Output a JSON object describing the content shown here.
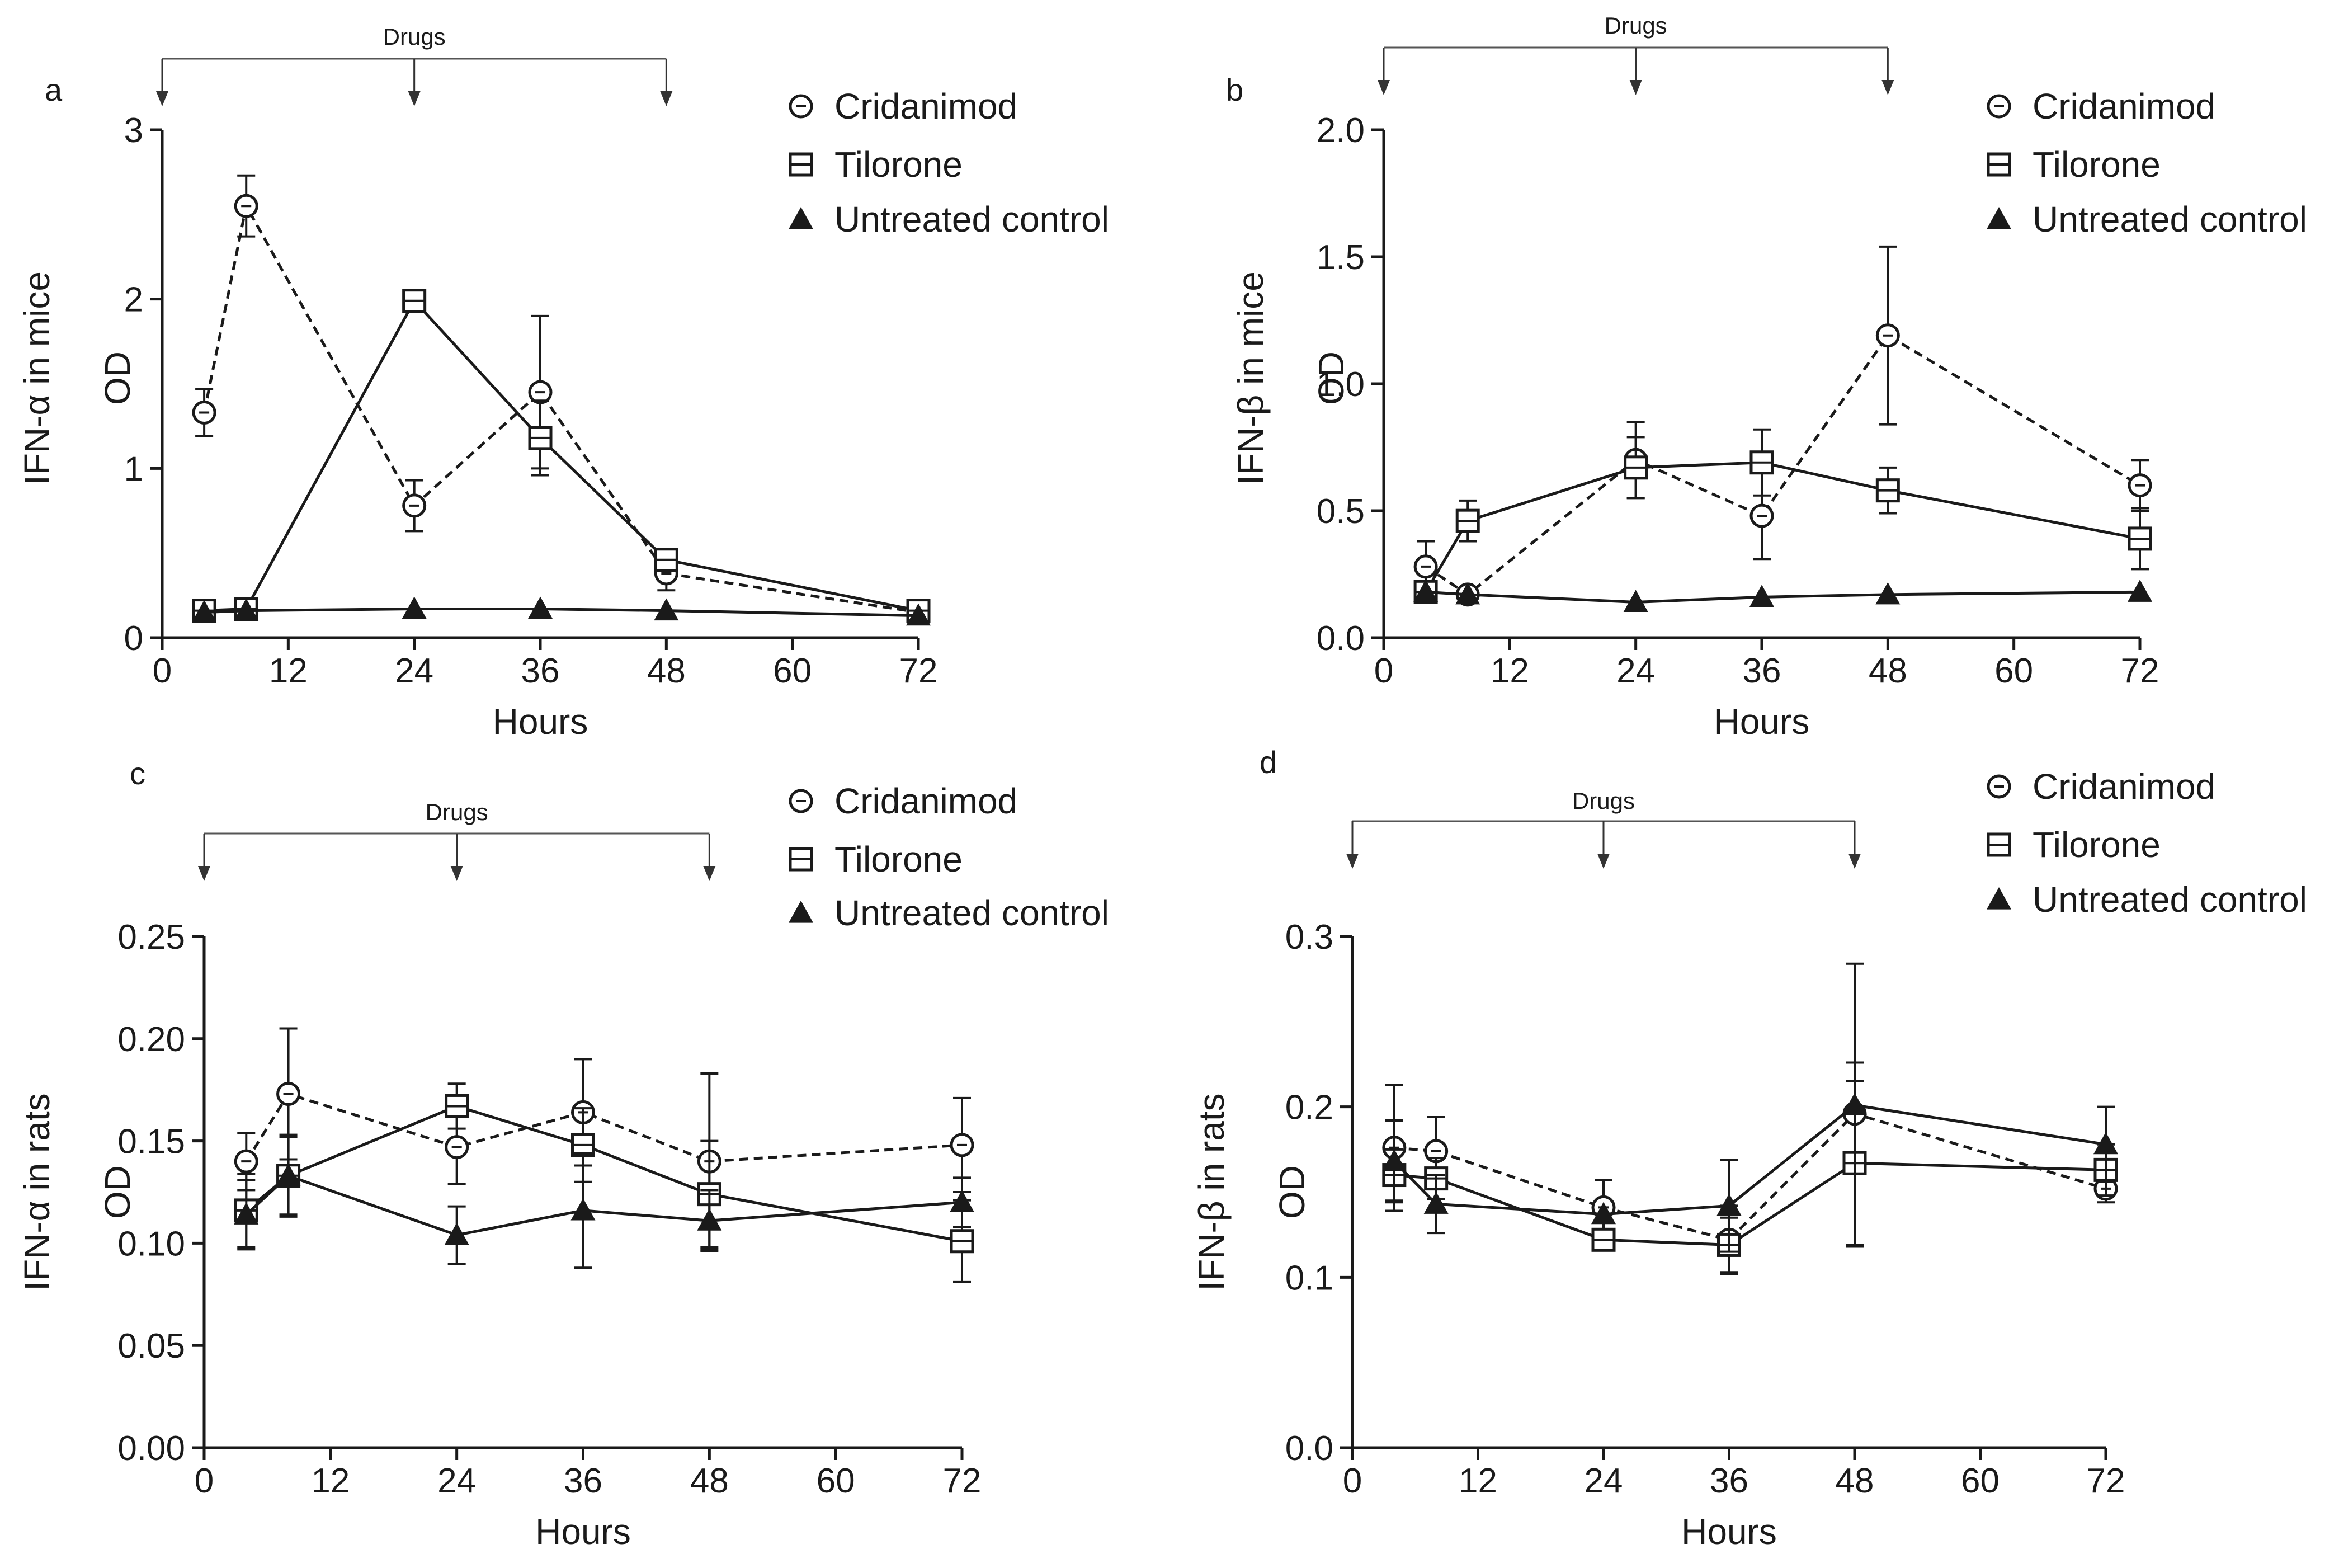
{
  "legend": {
    "cridanimod": "Cridanimod",
    "tilorone": "Tilorone",
    "untreated": "Untreated control"
  },
  "colors": {
    "ink": "#1a1a1a",
    "background": "#ffffff"
  },
  "chart_data": [
    {
      "id": "a",
      "panel_label": "a",
      "type": "line",
      "xlabel": "Hours",
      "ylabel": "IFN-α in mice",
      "ylabel2": "OD",
      "xlim": [
        0,
        72
      ],
      "ylim": [
        0,
        3
      ],
      "xticks": [
        0,
        12,
        24,
        36,
        48,
        60,
        72
      ],
      "yticks": [
        0,
        1,
        2,
        3
      ],
      "ytick_labels": [
        "0",
        "1",
        "2",
        "3"
      ],
      "drugs_label": "Drugs",
      "drug_times": [
        0,
        24,
        48
      ],
      "series": [
        {
          "name": "Cridanimod",
          "marker": "circle",
          "dash": true,
          "x": [
            4,
            8,
            24,
            36,
            48,
            72
          ],
          "y": [
            1.33,
            2.55,
            0.78,
            1.45,
            0.38,
            0.15
          ],
          "err": [
            0.14,
            0.18,
            0.15,
            0.45,
            0.1,
            0.02
          ]
        },
        {
          "name": "Tilorone",
          "marker": "square",
          "dash": false,
          "x": [
            4,
            8,
            24,
            36,
            48,
            72
          ],
          "y": [
            0.16,
            0.17,
            1.99,
            1.18,
            0.46,
            0.16
          ],
          "err": [
            0.02,
            0.02,
            0.05,
            0.22,
            0.06,
            0.02
          ]
        },
        {
          "name": "Untreated control",
          "marker": "triangle",
          "dash": false,
          "x": [
            4,
            8,
            24,
            36,
            48,
            72
          ],
          "y": [
            0.15,
            0.16,
            0.17,
            0.17,
            0.16,
            0.13
          ],
          "err": [
            0,
            0,
            0,
            0,
            0,
            0
          ]
        }
      ]
    },
    {
      "id": "b",
      "panel_label": "b",
      "type": "line",
      "xlabel": "Hours",
      "ylabel": "IFN-β in mice",
      "ylabel2": "OD",
      "xlim": [
        0,
        72
      ],
      "ylim": [
        0,
        2.0
      ],
      "xticks": [
        0,
        12,
        24,
        36,
        48,
        60,
        72
      ],
      "yticks": [
        0,
        0.5,
        1.0,
        1.5,
        2.0
      ],
      "ytick_labels": [
        "0.0",
        "0.5",
        "1.0",
        "1.5",
        "2.0"
      ],
      "drugs_label": "Drugs",
      "drug_times": [
        0,
        24,
        48
      ],
      "series": [
        {
          "name": "Cridanimod",
          "marker": "circle",
          "dash": true,
          "x": [
            4,
            8,
            24,
            36,
            48,
            72
          ],
          "y": [
            0.28,
            0.17,
            0.7,
            0.48,
            1.19,
            0.6
          ],
          "err": [
            0.1,
            0.02,
            0.15,
            0.17,
            0.35,
            0.1
          ]
        },
        {
          "name": "Tilorone",
          "marker": "square",
          "dash": false,
          "x": [
            4,
            8,
            24,
            36,
            48,
            72
          ],
          "y": [
            0.18,
            0.46,
            0.67,
            0.69,
            0.58,
            0.39
          ],
          "err": [
            0.02,
            0.08,
            0.12,
            0.13,
            0.09,
            0.12
          ]
        },
        {
          "name": "Untreated control",
          "marker": "triangle",
          "dash": false,
          "x": [
            4,
            8,
            24,
            36,
            48,
            72
          ],
          "y": [
            0.18,
            0.17,
            0.14,
            0.16,
            0.17,
            0.18
          ],
          "err": [
            0,
            0,
            0,
            0,
            0,
            0
          ]
        }
      ]
    },
    {
      "id": "c",
      "panel_label": "c",
      "type": "line",
      "xlabel": "Hours",
      "ylabel": "IFN-α in rats",
      "ylabel2": "OD",
      "xlim": [
        0,
        72
      ],
      "ylim": [
        0,
        0.25
      ],
      "xticks": [
        0,
        12,
        24,
        36,
        48,
        60,
        72
      ],
      "yticks": [
        0,
        0.05,
        0.1,
        0.15,
        0.2,
        0.25
      ],
      "ytick_labels": [
        "0.00",
        "0.05",
        "0.10",
        "0.15",
        "0.20",
        "0.25"
      ],
      "drugs_label": "Drugs",
      "drug_times": [
        0,
        24,
        48
      ],
      "series": [
        {
          "name": "Cridanimod",
          "marker": "circle",
          "dash": true,
          "x": [
            4,
            8,
            24,
            36,
            48,
            72
          ],
          "y": [
            0.14,
            0.173,
            0.147,
            0.164,
            0.14,
            0.148
          ],
          "err": [
            0.014,
            0.032,
            0.018,
            0.026,
            0.043,
            0.023
          ]
        },
        {
          "name": "Tilorone",
          "marker": "square",
          "dash": false,
          "x": [
            4,
            8,
            24,
            36,
            48,
            72
          ],
          "y": [
            0.116,
            0.133,
            0.167,
            0.148,
            0.124,
            0.101
          ],
          "err": [
            0.018,
            0.019,
            0.011,
            0.018,
            0.026,
            0.02
          ]
        },
        {
          "name": "Untreated control",
          "marker": "triangle",
          "dash": false,
          "x": [
            4,
            8,
            24,
            36,
            48,
            72
          ],
          "y": [
            0.114,
            0.133,
            0.104,
            0.116,
            0.111,
            0.12
          ],
          "err": [
            0.017,
            0.02,
            0.014,
            0.028,
            0.015,
            0.012
          ]
        }
      ]
    },
    {
      "id": "d",
      "panel_label": "d",
      "type": "line",
      "xlabel": "Hours",
      "ylabel": "IFN-β in rats",
      "ylabel2": "OD",
      "xlim": [
        0,
        72
      ],
      "ylim": [
        0,
        0.3
      ],
      "xticks": [
        0,
        12,
        24,
        36,
        48,
        60,
        72
      ],
      "yticks": [
        0,
        0.1,
        0.2,
        0.3
      ],
      "ytick_labels": [
        "0.0",
        "0.1",
        "0.2",
        "0.3"
      ],
      "drugs_label": "Drugs",
      "drug_times": [
        0,
        24,
        48
      ],
      "series": [
        {
          "name": "Cridanimod",
          "marker": "circle",
          "dash": true,
          "x": [
            4,
            8,
            24,
            36,
            48,
            72
          ],
          "y": [
            0.176,
            0.174,
            0.141,
            0.122,
            0.196,
            0.152
          ],
          "err": [
            0.037,
            0.02,
            0.016,
            0.02,
            0.03,
            0.008
          ]
        },
        {
          "name": "Tilorone",
          "marker": "square",
          "dash": false,
          "x": [
            4,
            8,
            24,
            36,
            48,
            72
          ],
          "y": [
            0.16,
            0.158,
            0.122,
            0.119,
            0.167,
            0.163
          ],
          "err": [
            0.015,
            0.012,
            0.0,
            0.016,
            0.048,
            0.015
          ]
        },
        {
          "name": "Untreated control",
          "marker": "triangle",
          "dash": false,
          "x": [
            4,
            8,
            24,
            36,
            48,
            72
          ],
          "y": [
            0.168,
            0.143,
            0.137,
            0.142,
            0.201,
            0.178
          ],
          "err": [
            0.024,
            0.017,
            0.0,
            0.027,
            0.083,
            0.022
          ]
        }
      ]
    }
  ]
}
